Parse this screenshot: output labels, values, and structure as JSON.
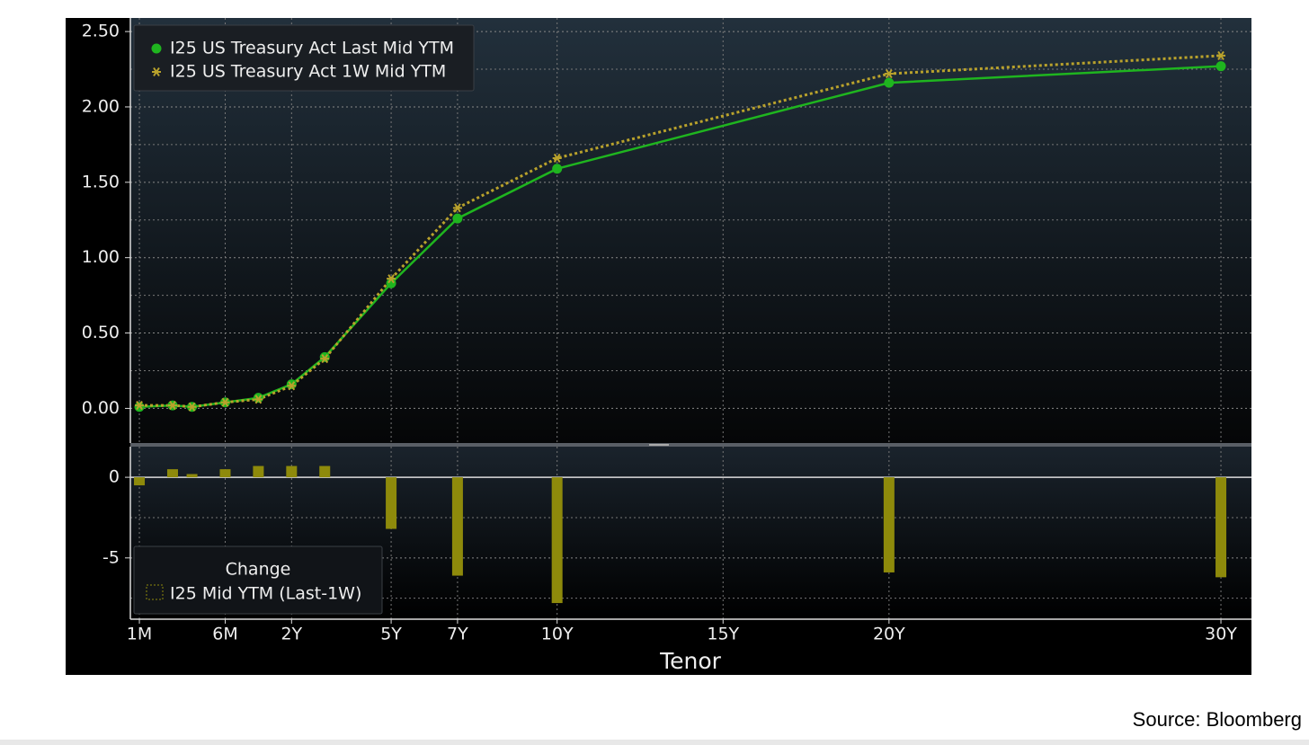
{
  "chart_data": [
    {
      "type": "line",
      "x": [
        0.0833,
        0.1667,
        0.25,
        0.5,
        1,
        2,
        3,
        5,
        7,
        10,
        20,
        30
      ],
      "xlim": [
        0.069,
        30.92
      ],
      "series": [
        {
          "name": "I25 US Treasury Act Last Mid YTM",
          "color": "#1fb51f",
          "marker": "circle",
          "values": [
            0.01,
            0.02,
            0.01,
            0.04,
            0.07,
            0.16,
            0.34,
            0.83,
            1.26,
            1.59,
            2.16,
            2.27
          ]
        },
        {
          "name": "I25 US Treasury Act 1W Mid YTM",
          "color": "#b9a22c",
          "marker": "asterisk",
          "dash": true,
          "values": [
            0.02,
            0.02,
            0.01,
            0.04,
            0.06,
            0.15,
            0.33,
            0.86,
            1.33,
            1.66,
            2.22,
            2.34
          ]
        }
      ],
      "ylim": [
        -0.23,
        2.59
      ],
      "yticks": [
        {
          "value": 0,
          "label": "0.00"
        },
        {
          "value": 0.5,
          "label": "0.50"
        },
        {
          "value": 1,
          "label": "1.00"
        },
        {
          "value": 1.5,
          "label": "1.50"
        },
        {
          "value": 2,
          "label": "2.00"
        },
        {
          "value": 2.5,
          "label": "2.50"
        }
      ],
      "grid": true
    },
    {
      "type": "bar",
      "x": [
        0.0833,
        0.1667,
        0.25,
        0.5,
        1,
        2,
        3,
        5,
        7,
        10,
        20,
        30
      ],
      "xlim": [
        0.069,
        30.92
      ],
      "legend_title": "Change",
      "series": [
        {
          "name": "I25 Mid YTM (Last-1W)",
          "color": "#8e8a0b",
          "values": [
            -0.5,
            0.5,
            0.2,
            0.5,
            0.7,
            0.7,
            0.7,
            -3.2,
            -6.1,
            -7.8,
            -5.9,
            -6.2
          ]
        }
      ],
      "ylim": [
        -8.8,
        1.9
      ],
      "yticks": [
        0,
        -5
      ],
      "xticks": [
        {
          "value": 0.0833,
          "label": "1M"
        },
        {
          "value": 0.5,
          "label": "6M"
        },
        {
          "value": 2,
          "label": "2Y"
        },
        {
          "value": 5,
          "label": "5Y"
        },
        {
          "value": 7,
          "label": "7Y"
        },
        {
          "value": 10,
          "label": "10Y"
        },
        {
          "value": 15,
          "label": "15Y"
        },
        {
          "value": 20,
          "label": "20Y"
        },
        {
          "value": 30,
          "label": "30Y"
        }
      ],
      "xlabel": "Tenor",
      "grid": true
    }
  ],
  "source": "Source: Bloomberg"
}
